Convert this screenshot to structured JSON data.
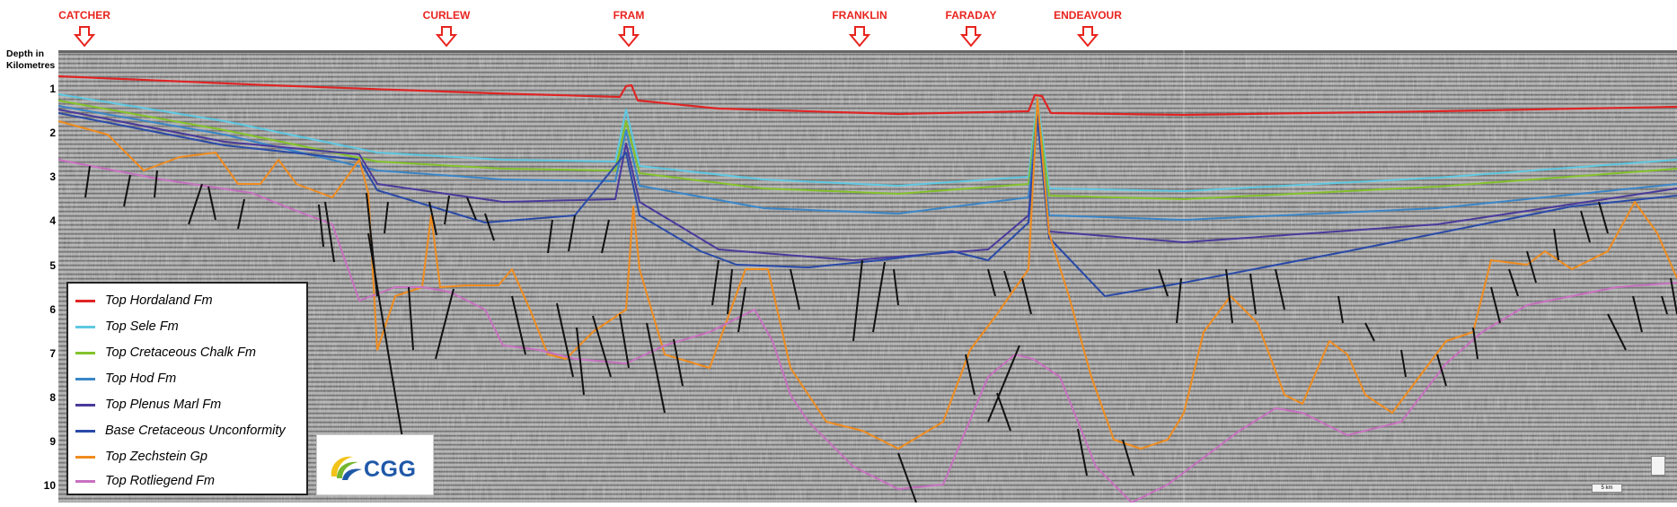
{
  "fields": [
    {
      "label": "CATCHER"
    },
    {
      "label": "CURLEW"
    },
    {
      "label": "FRAM"
    },
    {
      "label": "FRANKLIN"
    },
    {
      "label": "FARADAY"
    },
    {
      "label": "ENDEAVOUR"
    }
  ],
  "depth_axis": {
    "title_line1": "Depth in",
    "title_line2": "Kilometres",
    "ticks": [
      "1",
      "2",
      "3",
      "4",
      "5",
      "6",
      "7",
      "8",
      "9",
      "10"
    ]
  },
  "legend": {
    "items": [
      {
        "label": "Top Hordaland Fm",
        "color": "#e02424"
      },
      {
        "label": "Top Sele Fm",
        "color": "#5ec8e2"
      },
      {
        "label": "Top Cretaceous Chalk Fm",
        "color": "#84c22a"
      },
      {
        "label": "Top Hod Fm",
        "color": "#3a86c8"
      },
      {
        "label": "Top Plenus Marl Fm",
        "color": "#4a3a9c"
      },
      {
        "label": "Base Cretaceous Unconformity",
        "color": "#2a4aa8"
      },
      {
        "label": "Top Zechstein Gp",
        "color": "#f08c1e"
      },
      {
        "label": "Top Rotliegend Fm",
        "color": "#c870c0"
      }
    ]
  },
  "logo": {
    "text": "CGG"
  },
  "scale_bar": {
    "label": "5 km"
  },
  "colors": {
    "field_label": "#e8231e",
    "seismic_background": "#8a8a8a"
  }
}
